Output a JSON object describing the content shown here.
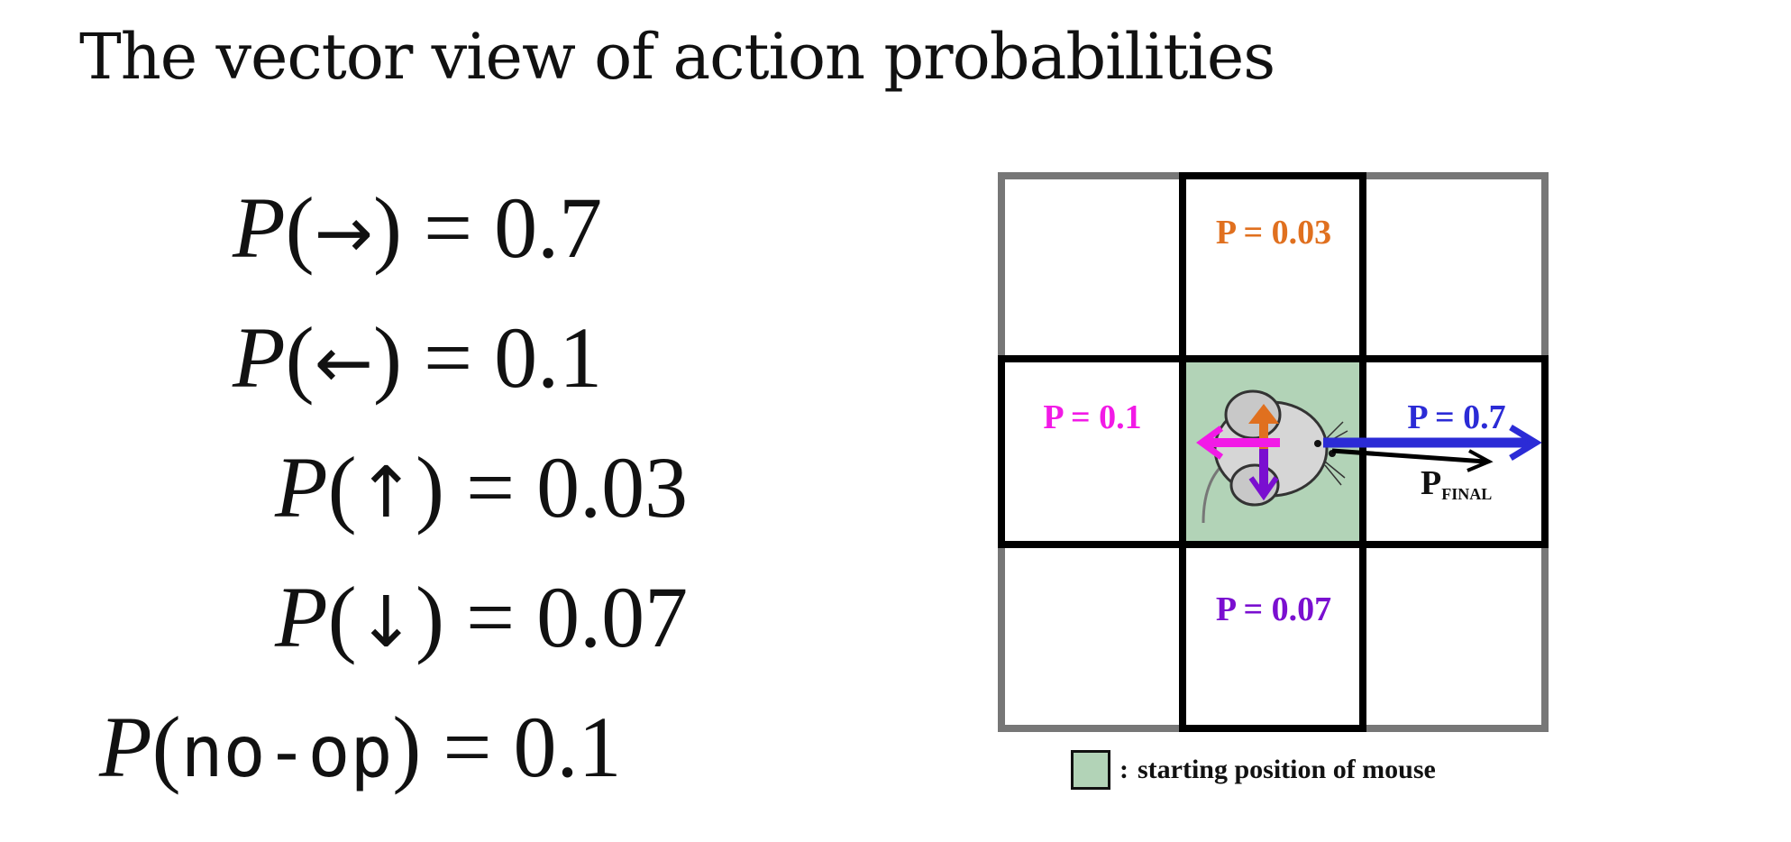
{
  "title": "The vector view of action probabilities",
  "equations": [
    {
      "var": "P",
      "action": "→",
      "value": "0.7"
    },
    {
      "var": "P",
      "action": "←",
      "value": "0.1"
    },
    {
      "var": "P",
      "action": "↑",
      "value": "0.03"
    },
    {
      "var": "P",
      "action": "↓",
      "value": "0.07"
    },
    {
      "var": "P",
      "action": "no-op",
      "value": "0.1"
    }
  ],
  "grid_labels": {
    "up": "P = 0.03",
    "left": "P = 0.1",
    "right": "P = 0.7",
    "down": "P = 0.07",
    "final_main": "P",
    "final_sub": "FINAL"
  },
  "legend": {
    "colon": ":",
    "text": "starting position of mouse"
  },
  "colors": {
    "up": "#e0701f",
    "left": "#f21ae6",
    "right": "#2b2bd6",
    "down": "#7a0fd0",
    "start_cell": "#b2d3b7",
    "outer_border": "#777777",
    "inner_border": "#000000"
  }
}
